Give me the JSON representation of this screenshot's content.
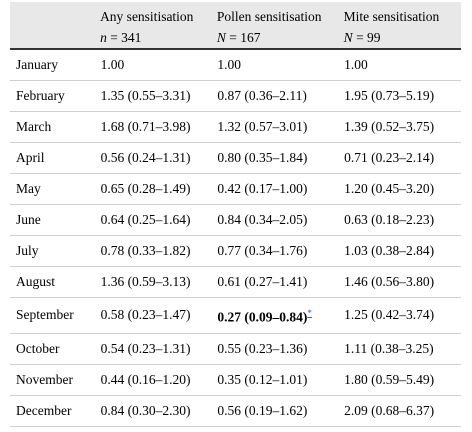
{
  "header": {
    "col0": "",
    "col1": {
      "title": "Any sensitisation",
      "n_label": "n",
      "n_value": " = 341"
    },
    "col2": {
      "title": "Pollen sensitisation",
      "n_label": "N",
      "n_value": " = 167"
    },
    "col3": {
      "title": "Mite sensitisation",
      "n_label": "N",
      "n_value": " = 99"
    }
  },
  "rows": [
    {
      "month": "January",
      "any": "1.00",
      "pollen": "1.00",
      "mite": "1.00"
    },
    {
      "month": "February",
      "any": "1.35 (0.55–3.31)",
      "pollen": "0.87 (0.36–2.11)",
      "mite": "1.95 (0.73–5.19)"
    },
    {
      "month": "March",
      "any": "1.68 (0.71–3.98)",
      "pollen": "1.32 (0.57–3.01)",
      "mite": "1.39 (0.52–3.75)"
    },
    {
      "month": "April",
      "any": "0.56 (0.24–1.31)",
      "pollen": "0.80 (0.35–1.84)",
      "mite": "0.71 (0.23–2.14)"
    },
    {
      "month": "May",
      "any": "0.65 (0.28–1.49)",
      "pollen": "0.42 (0.17–1.00)",
      "mite": "1.20 (0.45–3.20)"
    },
    {
      "month": "June",
      "any": "0.64 (0.25–1.64)",
      "pollen": "0.84 (0.34–2.05)",
      "mite": "0.63 (0.18–2.23)"
    },
    {
      "month": "July",
      "any": "0.78 (0.33–1.82)",
      "pollen": "0.77 (0.34–1.76)",
      "mite": "1.03 (0.38–2.84)"
    },
    {
      "month": "August",
      "any": "1.36 (0.59–3.13)",
      "pollen": "0.61 (0.27–1.41)",
      "mite": "1.46 (0.56–3.80)"
    },
    {
      "month": "September",
      "any": "0.58 (0.23–1.47)",
      "pollen": "0.27 (0.09–0.84)",
      "pollen_note": "*",
      "mite": "1.25 (0.42–3.74)"
    },
    {
      "month": "October",
      "any": "0.54 (0.23–1.31)",
      "pollen": "0.55 (0.23–1.36)",
      "mite": "1.11 (0.38–3.25)"
    },
    {
      "month": "November",
      "any": "0.44 (0.16–1.20)",
      "pollen": "0.35 (0.12–1.01)",
      "mite": "1.80 (0.59–5.49)"
    },
    {
      "month": "December",
      "any": "0.84 (0.30–2.30)",
      "pollen": "0.56 (0.19–1.62)",
      "mite": "2.09 (0.68–6.37)"
    }
  ]
}
